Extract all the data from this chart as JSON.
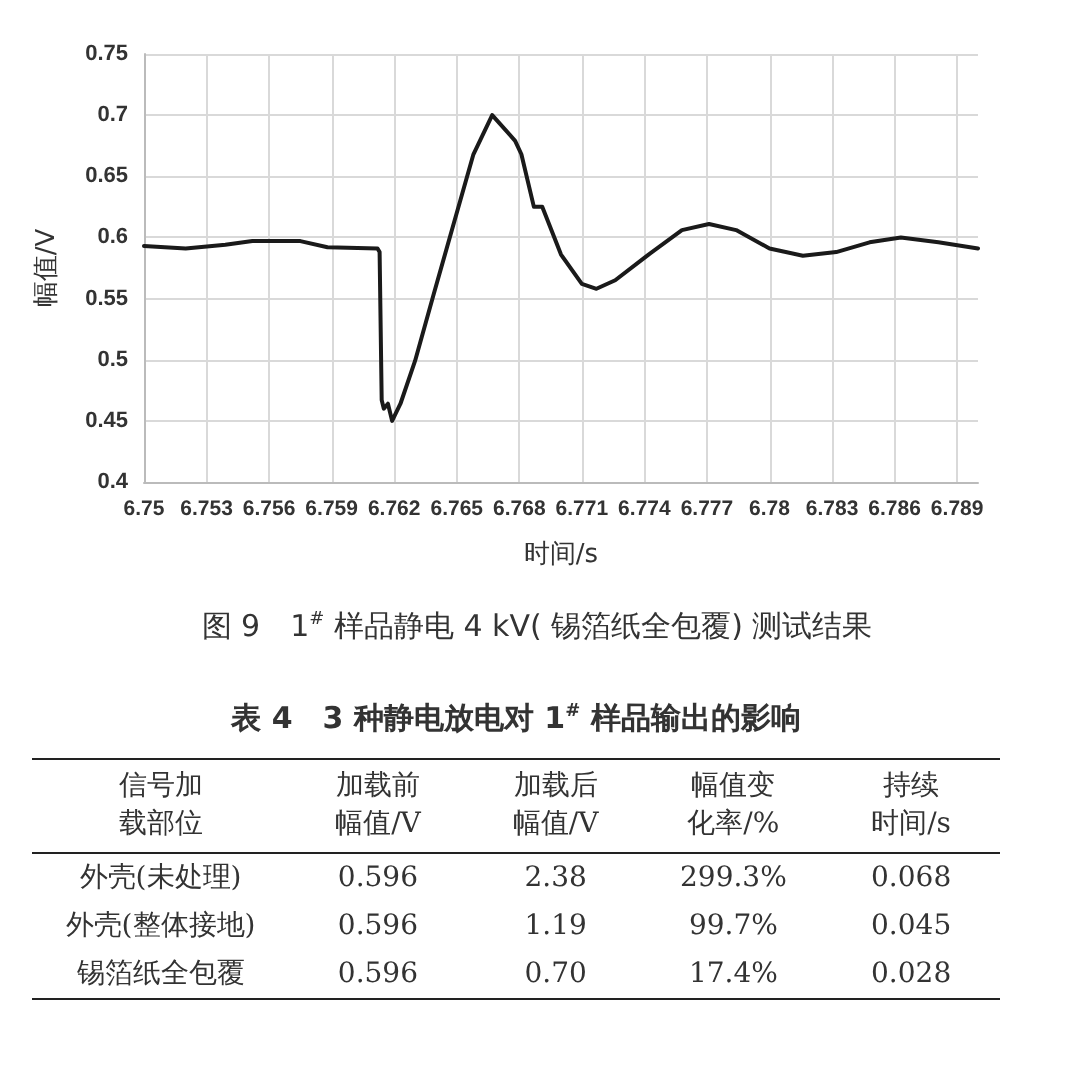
{
  "chart_data": [
    {
      "type": "line",
      "title": "图 9　1$^{#}$ 样品静电 4 kV( 锡箔纸全包覆) 测试结果",
      "xlabel": "时间/s",
      "ylabel": "幅值/V",
      "x": [
        6.75,
        6.752,
        6.7539,
        6.7552,
        6.7575,
        6.7588,
        6.7612,
        6.7613,
        6.7614,
        6.7615,
        6.7617,
        6.7619,
        6.7623,
        6.763,
        6.7639,
        6.7649,
        6.7658,
        6.7667,
        6.7678,
        6.7681,
        6.7687,
        6.7691,
        6.77,
        6.771,
        6.7717,
        6.7726,
        6.7742,
        6.7758,
        6.7771,
        6.7784,
        6.78,
        6.7816,
        6.7832,
        6.7848,
        6.7863,
        6.7881,
        6.79
      ],
      "series": [
        {
          "color": "#1a1a1a",
          "values": [
            0.593,
            0.591,
            0.594,
            0.597,
            0.597,
            0.592,
            0.591,
            0.588,
            0.467,
            0.46,
            0.464,
            0.45,
            0.464,
            0.499,
            0.554,
            0.614,
            0.668,
            0.7,
            0.679,
            0.668,
            0.625,
            0.625,
            0.586,
            0.562,
            0.558,
            0.565,
            0.586,
            0.606,
            0.611,
            0.606,
            0.591,
            0.585,
            0.588,
            0.596,
            0.6,
            0.596,
            0.591
          ]
        }
      ],
      "xlim": [
        6.75,
        6.79
      ],
      "xticks": [
        6.75,
        6.753,
        6.756,
        6.759,
        6.762,
        6.765,
        6.768,
        6.771,
        6.774,
        6.777,
        6.78,
        6.783,
        6.786,
        6.789
      ],
      "ylim": [
        0.4,
        0.75
      ],
      "yticks": [
        0.4,
        0.45,
        0.5,
        0.55,
        0.6,
        0.65,
        0.7,
        0.75
      ],
      "grid": true,
      "marker": "none",
      "line_style": "solid"
    },
    {
      "type": "other",
      "title": "表 4　3 种静电放电对 1$^{#}$ 样品输出的影响",
      "categories": [
        "信号加载部位",
        "加载前幅值/V",
        "加载后幅值/V",
        "幅值变化率/%",
        "持续时间/s"
      ],
      "y_categories": [
        "外壳(未处理)",
        "外壳(整体接地)",
        "锡箔纸全包覆"
      ],
      "cell_labels": [
        [
          "0.596",
          "2.38",
          "299.3%",
          "0.068"
        ],
        [
          "0.596",
          "1.19",
          "99.7%",
          "0.045"
        ],
        [
          "0.596",
          "0.70",
          "17.4%",
          "0.028"
        ]
      ]
    }
  ]
}
